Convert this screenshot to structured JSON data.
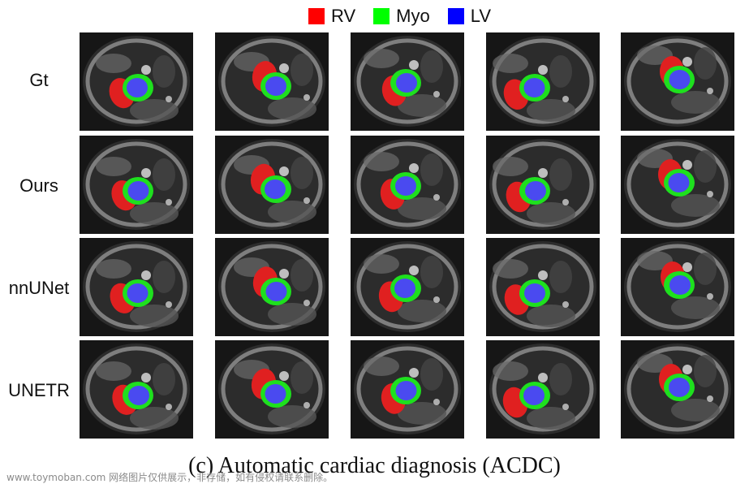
{
  "legend": [
    {
      "label": "RV",
      "color": "#ff0000"
    },
    {
      "label": "Myo",
      "color": "#00ff00"
    },
    {
      "label": "LV",
      "color": "#0000ff"
    }
  ],
  "rows": [
    "Gt",
    "Ours",
    "nnUNet",
    "UNETR"
  ],
  "caption": "(c) Automatic cardiac diagnosis (ACDC)",
  "watermark": "www.toymoban.com 网络图片仅供展示，非存储，如有侵权请联系删除。"
}
